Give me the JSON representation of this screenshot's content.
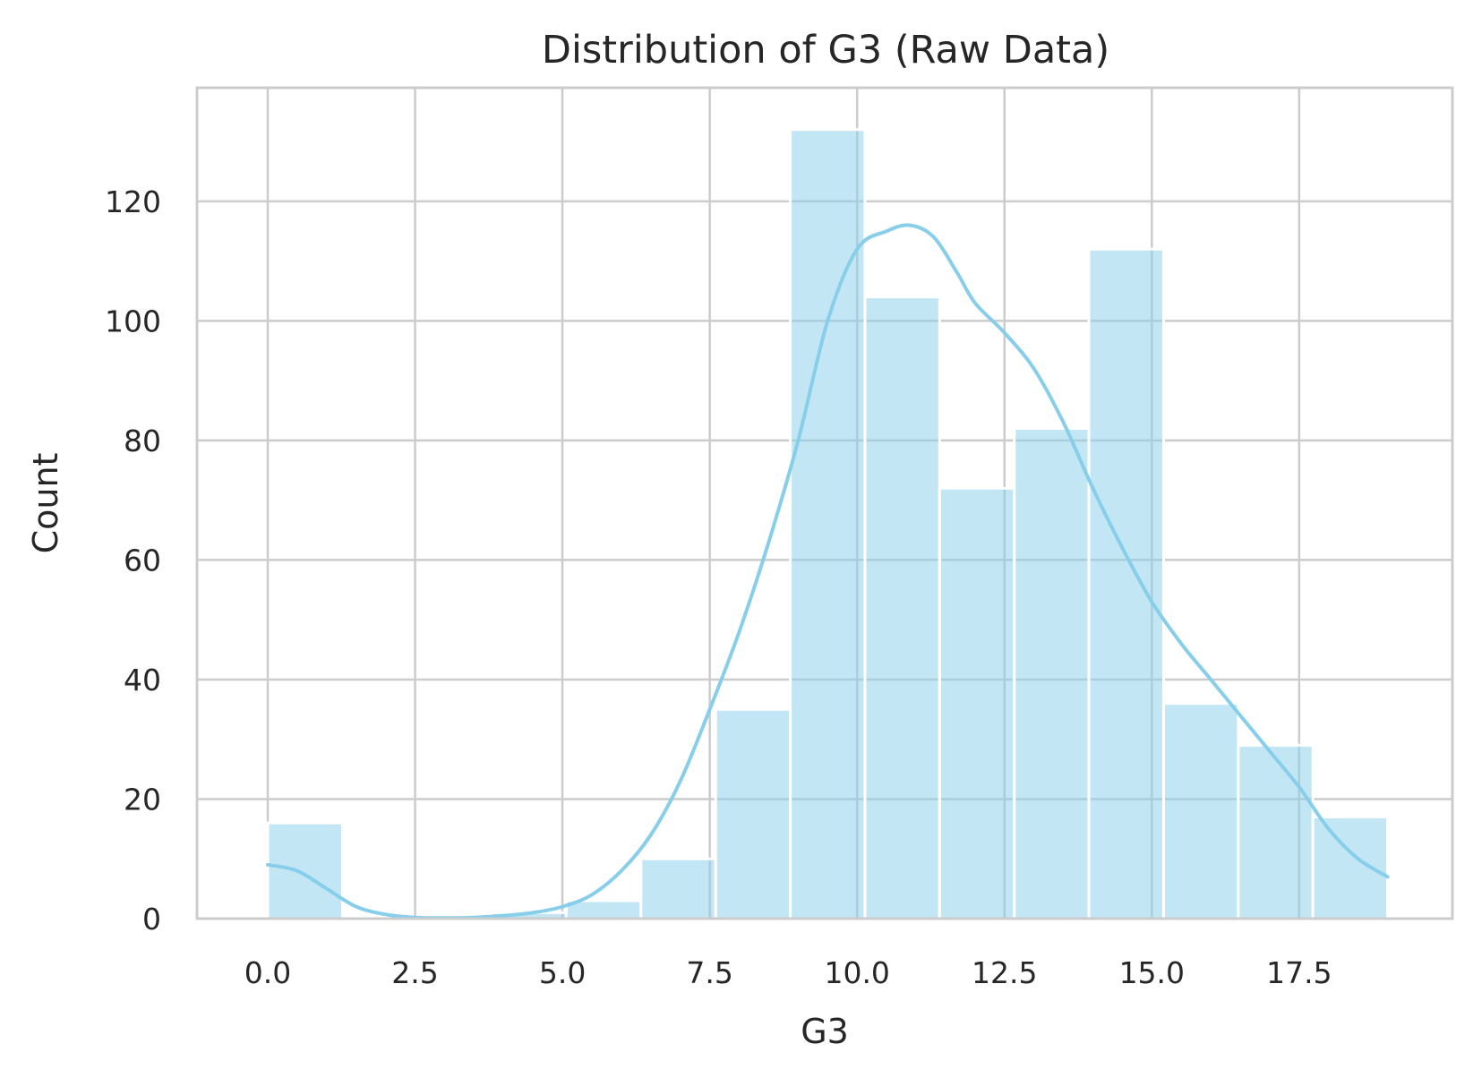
{
  "chart_data": {
    "type": "bar",
    "subtype": "histogram_with_kde",
    "title": "Distribution of G3 (Raw Data)",
    "xlabel": "G3",
    "ylabel": "Count",
    "xlim": [
      -1.2,
      20.1
    ],
    "ylim": [
      0,
      139
    ],
    "xticks": [
      0.0,
      2.5,
      5.0,
      7.5,
      10.0,
      12.5,
      15.0,
      17.5
    ],
    "xtick_labels": [
      "0.0",
      "2.5",
      "5.0",
      "7.5",
      "10.0",
      "12.5",
      "15.0",
      "17.5"
    ],
    "yticks": [
      0,
      20,
      40,
      60,
      80,
      100,
      120
    ],
    "ytick_labels": [
      "0",
      "20",
      "40",
      "60",
      "80",
      "100",
      "120"
    ],
    "grid": true,
    "bar_color": "#87CEEB",
    "bar_alpha": 0.5,
    "kde_color": "#87CEEB",
    "bins": [
      {
        "x0": 0.0,
        "x1": 1.267,
        "count": 16
      },
      {
        "x0": 1.267,
        "x1": 2.533,
        "count": 0
      },
      {
        "x0": 2.533,
        "x1": 3.8,
        "count": 0
      },
      {
        "x0": 3.8,
        "x1": 5.067,
        "count": 1
      },
      {
        "x0": 5.067,
        "x1": 6.333,
        "count": 3
      },
      {
        "x0": 6.333,
        "x1": 7.6,
        "count": 10
      },
      {
        "x0": 7.6,
        "x1": 8.867,
        "count": 35
      },
      {
        "x0": 8.867,
        "x1": 10.133,
        "count": 132
      },
      {
        "x0": 10.133,
        "x1": 11.4,
        "count": 104
      },
      {
        "x0": 11.4,
        "x1": 12.667,
        "count": 72
      },
      {
        "x0": 12.667,
        "x1": 13.933,
        "count": 82
      },
      {
        "x0": 13.933,
        "x1": 15.2,
        "count": 112
      },
      {
        "x0": 15.2,
        "x1": 16.467,
        "count": 36
      },
      {
        "x0": 16.467,
        "x1": 17.733,
        "count": 29
      },
      {
        "x0": 17.733,
        "x1": 19.0,
        "count": 17
      }
    ],
    "kde": {
      "x": [
        0,
        0.5,
        1,
        1.5,
        2,
        2.5,
        3,
        3.5,
        4,
        4.5,
        5,
        5.5,
        6,
        6.5,
        7,
        7.5,
        8,
        8.5,
        9,
        9.5,
        10,
        10.5,
        10.9,
        11.3,
        11.7,
        12,
        12.5,
        13,
        13.5,
        14,
        14.5,
        15,
        15.5,
        16,
        16.5,
        17,
        17.5,
        18,
        18.5,
        19
      ],
      "y": [
        9,
        8,
        5,
        2,
        0.7,
        0.2,
        0.1,
        0.2,
        0.5,
        1.0,
        2.0,
        4,
        8,
        14,
        23,
        35,
        48,
        63,
        80,
        100,
        112,
        115,
        116,
        114,
        108,
        103,
        98,
        92,
        83,
        72,
        62,
        53,
        46,
        40,
        34,
        28,
        22,
        15,
        10,
        7
      ]
    }
  }
}
